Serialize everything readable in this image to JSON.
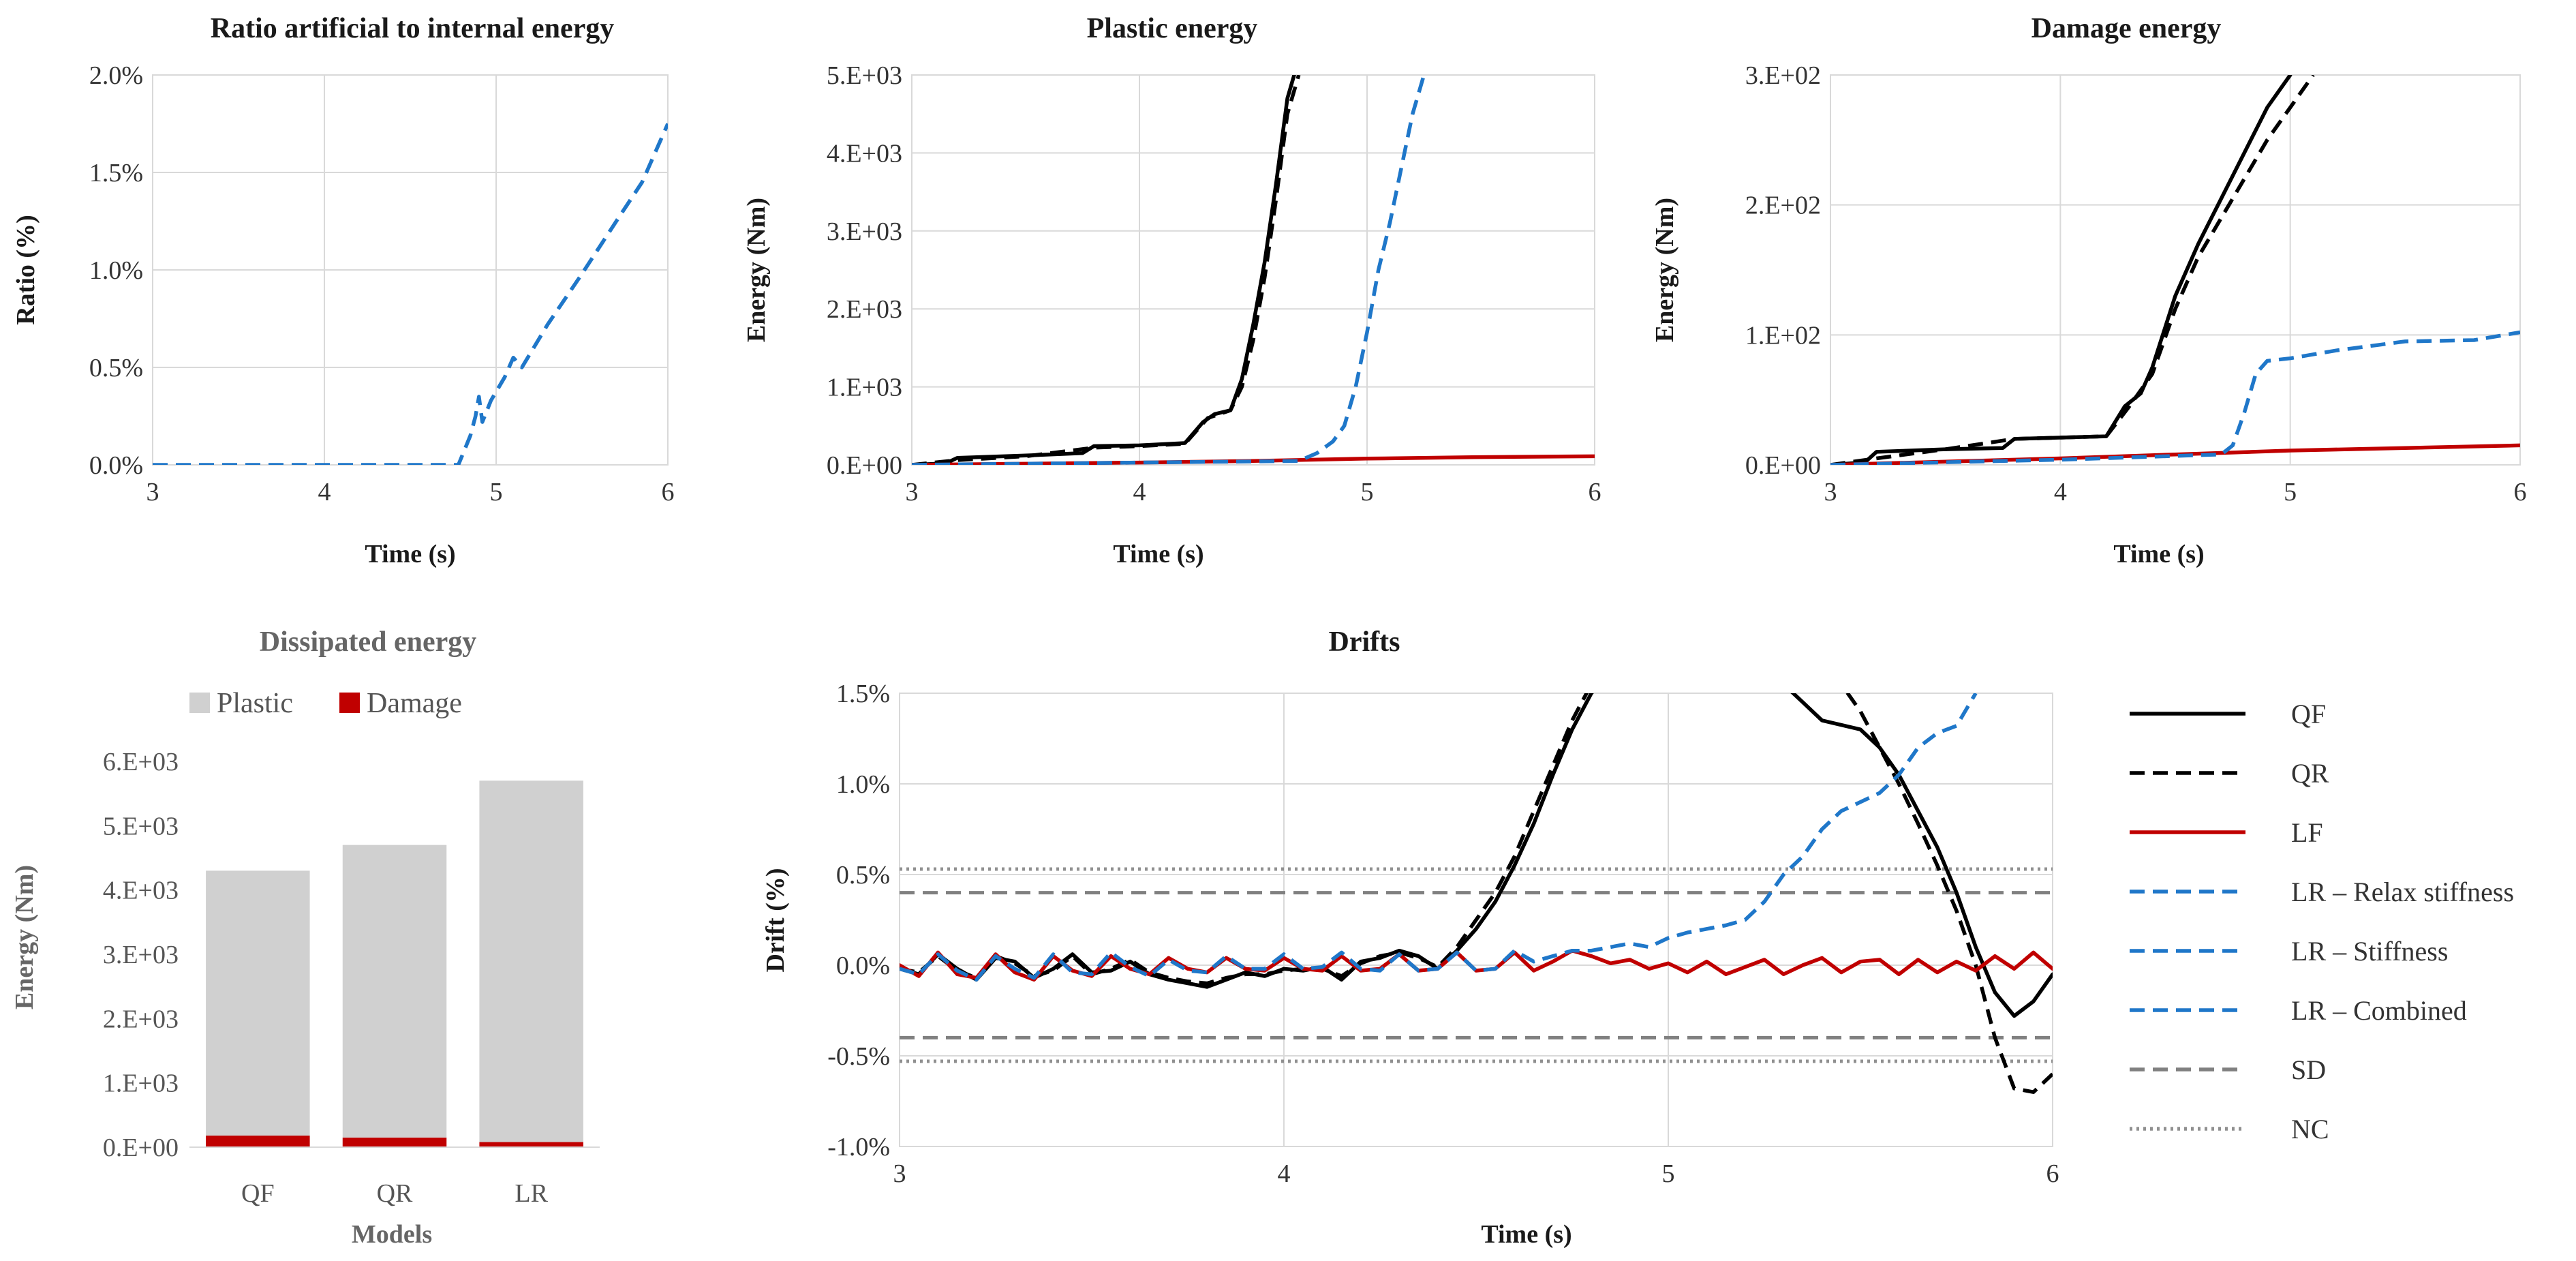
{
  "chart_data": [
    {
      "id": "ratio",
      "type": "line",
      "title": "Ratio artificial to internal energy",
      "xlabel": "Time (s)",
      "ylabel": "Ratio (%)",
      "xlim": [
        3,
        6
      ],
      "ylim": [
        0,
        2
      ],
      "x_ticks": [
        3,
        4,
        5,
        6
      ],
      "x_tick_labels": [
        "3",
        "4",
        "5",
        "6"
      ],
      "y_ticks": [
        0,
        0.5,
        1,
        1.5,
        2
      ],
      "y_tick_labels": [
        "0.0%",
        "0.5%",
        "1.0%",
        "1.5%",
        "2.0%"
      ],
      "grid": true,
      "series": [
        {
          "name": "LR",
          "color": "#1f77c9",
          "dash": "dashed",
          "x": [
            3,
            4.0,
            4.78,
            4.85,
            4.88,
            4.9,
            4.92,
            4.97,
            5.05,
            5.1,
            5.15,
            5.3,
            5.5,
            5.7,
            5.85,
            6.0
          ],
          "y": [
            0,
            0,
            0,
            0.15,
            0.25,
            0.35,
            0.22,
            0.33,
            0.45,
            0.55,
            0.5,
            0.72,
            0.98,
            1.25,
            1.45,
            1.75
          ]
        }
      ]
    },
    {
      "id": "plastic",
      "type": "line",
      "title": "Plastic energy",
      "xlabel": "Time (s)",
      "ylabel": "Energy (Nm)",
      "xlim": [
        3,
        6
      ],
      "ylim": [
        0,
        5000
      ],
      "x_ticks": [
        3,
        4,
        5,
        6
      ],
      "x_tick_labels": [
        "3",
        "4",
        "5",
        "6"
      ],
      "y_ticks": [
        0,
        1000,
        2000,
        3000,
        4000,
        5000
      ],
      "y_tick_labels": [
        "0.E+00",
        "1.E+03",
        "2.E+03",
        "3.E+03",
        "4.E+03",
        "5.E+03"
      ],
      "grid": true,
      "series": [
        {
          "name": "QF",
          "color": "#000000",
          "dash": "solid",
          "x": [
            3,
            3.15,
            3.2,
            3.5,
            3.75,
            3.8,
            4.0,
            4.2,
            4.28,
            4.33,
            4.4,
            4.45,
            4.5,
            4.55,
            4.6,
            4.65,
            4.68
          ],
          "y": [
            0,
            20,
            90,
            120,
            150,
            240,
            250,
            280,
            550,
            650,
            700,
            1100,
            1800,
            2600,
            3600,
            4700,
            5000
          ]
        },
        {
          "name": "QR",
          "color": "#000000",
          "dash": "dashed",
          "x": [
            3,
            3.2,
            3.5,
            3.8,
            4.0,
            4.2,
            4.3,
            4.4,
            4.45,
            4.5,
            4.55,
            4.6,
            4.65,
            4.7
          ],
          "y": [
            0,
            60,
            110,
            220,
            240,
            270,
            600,
            700,
            1000,
            1600,
            2400,
            3400,
            4500,
            5000
          ]
        },
        {
          "name": "LF",
          "color": "#c00000",
          "dash": "solid",
          "x": [
            3,
            4.0,
            4.5,
            5.0,
            5.5,
            6.0
          ],
          "y": [
            0,
            30,
            50,
            80,
            100,
            110
          ]
        },
        {
          "name": "LR",
          "color": "#1f77c9",
          "dash": "dashed",
          "x": [
            3,
            4.0,
            4.7,
            4.78,
            4.85,
            4.9,
            4.95,
            5.0,
            5.05,
            5.1,
            5.15,
            5.2,
            5.25
          ],
          "y": [
            0,
            30,
            50,
            150,
            300,
            500,
            1000,
            1700,
            2500,
            3100,
            3800,
            4500,
            5000
          ]
        }
      ]
    },
    {
      "id": "damage",
      "type": "line",
      "title": "Damage energy",
      "xlabel": "Time (s)",
      "ylabel": "Energy (Nm)",
      "xlim": [
        3,
        6
      ],
      "ylim": [
        0,
        300
      ],
      "x_ticks": [
        3,
        4,
        5,
        6
      ],
      "x_tick_labels": [
        "3",
        "4",
        "5",
        "6"
      ],
      "y_ticks": [
        0,
        100,
        200,
        300
      ],
      "y_tick_labels": [
        "0.E+00",
        "1.E+02",
        "2.E+02",
        "3.E+02"
      ],
      "grid": true,
      "series": [
        {
          "name": "QF",
          "color": "#000000",
          "dash": "solid",
          "x": [
            3,
            3.15,
            3.2,
            3.5,
            3.75,
            3.8,
            4.0,
            4.2,
            4.28,
            4.35,
            4.4,
            4.5,
            4.6,
            4.7,
            4.8,
            4.9,
            5.0
          ],
          "y": [
            0,
            2,
            10,
            12,
            13,
            20,
            21,
            22,
            45,
            55,
            75,
            130,
            170,
            205,
            240,
            275,
            300
          ]
        },
        {
          "name": "QR",
          "color": "#000000",
          "dash": "dashed",
          "x": [
            3,
            3.2,
            3.5,
            3.8,
            4.0,
            4.2,
            4.3,
            4.4,
            4.5,
            4.6,
            4.7,
            4.8,
            4.9,
            5.0,
            5.1
          ],
          "y": [
            0,
            5,
            12,
            20,
            21,
            22,
            45,
            70,
            120,
            160,
            190,
            220,
            250,
            275,
            300
          ]
        },
        {
          "name": "LF",
          "color": "#c00000",
          "dash": "solid",
          "x": [
            3,
            4.0,
            4.5,
            5.0,
            5.5,
            6.0
          ],
          "y": [
            0,
            5,
            8,
            11,
            13,
            15
          ]
        },
        {
          "name": "LR",
          "color": "#1f77c9",
          "dash": "dashed",
          "x": [
            3,
            4.0,
            4.7,
            4.75,
            4.8,
            4.85,
            4.9,
            5.0,
            5.2,
            5.5,
            5.8,
            6.0
          ],
          "y": [
            0,
            4,
            8,
            15,
            40,
            70,
            80,
            82,
            88,
            95,
            96,
            102
          ]
        }
      ]
    },
    {
      "id": "dissipated",
      "type": "bar",
      "stacked": true,
      "title": "Dissipated energy",
      "xlabel": "Models",
      "ylabel": "Energy (Nm)",
      "categories": [
        "QF",
        "QR",
        "LR"
      ],
      "ylim": [
        0,
        6000
      ],
      "y_ticks": [
        0,
        1000,
        2000,
        3000,
        4000,
        5000,
        6000
      ],
      "y_tick_labels": [
        "0.E+00",
        "1.E+03",
        "2.E+03",
        "3.E+03",
        "4.E+03",
        "5.E+03",
        "6.E+03"
      ],
      "legend_position": "top",
      "series": [
        {
          "name": "Damage",
          "color": "#c00000",
          "values": [
            180,
            150,
            80
          ]
        },
        {
          "name": "Plastic",
          "color": "#d0d0d0",
          "values": [
            4120,
            4550,
            5620
          ]
        }
      ]
    },
    {
      "id": "drifts",
      "type": "line",
      "title": "Drifts",
      "xlabel": "Time (s)",
      "ylabel": "Drift (%)",
      "xlim": [
        3,
        6
      ],
      "ylim": [
        -1,
        1.5
      ],
      "x_ticks": [
        3,
        4,
        5,
        6
      ],
      "x_tick_labels": [
        "3",
        "4",
        "5",
        "6"
      ],
      "y_ticks": [
        -1,
        -0.5,
        0,
        0.5,
        1,
        1.5
      ],
      "y_tick_labels": [
        "-1.0%",
        "-0.5%",
        "0.0%",
        "0.5%",
        "1.0%",
        "1.5%"
      ],
      "grid": true,
      "legend_position": "right",
      "series": [
        {
          "name": "QF",
          "color": "#000000",
          "dash": "solid",
          "x": [
            3,
            3.05,
            3.1,
            3.15,
            3.2,
            3.25,
            3.3,
            3.35,
            3.4,
            3.45,
            3.5,
            3.55,
            3.6,
            3.65,
            3.7,
            3.75,
            3.8,
            3.85,
            3.9,
            3.95,
            4.0,
            4.05,
            4.1,
            4.15,
            4.2,
            4.25,
            4.3,
            4.35,
            4.4,
            4.45,
            4.5,
            4.55,
            4.6,
            4.65,
            4.7,
            4.75,
            4.8,
            4.82,
            5.3,
            5.35,
            5.4,
            5.5,
            5.55,
            5.6,
            5.65,
            5.7,
            5.75,
            5.8,
            5.85,
            5.9,
            5.95,
            6.0
          ],
          "y": [
            -0.02,
            -0.05,
            0.06,
            -0.02,
            -0.08,
            0.04,
            0.02,
            -0.07,
            -0.02,
            0.06,
            -0.04,
            -0.03,
            0.02,
            -0.05,
            -0.08,
            -0.1,
            -0.12,
            -0.08,
            -0.04,
            -0.06,
            -0.02,
            -0.03,
            -0.01,
            -0.08,
            0.02,
            0.04,
            0.08,
            0.05,
            -0.02,
            0.08,
            0.2,
            0.35,
            0.55,
            0.78,
            1.05,
            1.3,
            1.5,
            1.55,
            1.55,
            1.45,
            1.35,
            1.3,
            1.2,
            1.05,
            0.85,
            0.65,
            0.4,
            0.1,
            -0.15,
            -0.28,
            -0.2,
            -0.05
          ]
        },
        {
          "name": "QR",
          "color": "#000000",
          "dash": "dashed",
          "x": [
            3,
            3.05,
            3.1,
            3.15,
            3.2,
            3.25,
            3.3,
            3.35,
            3.4,
            3.45,
            3.5,
            3.55,
            3.6,
            3.65,
            3.7,
            3.75,
            3.8,
            3.85,
            3.9,
            3.95,
            4.0,
            4.05,
            4.1,
            4.15,
            4.2,
            4.25,
            4.3,
            4.35,
            4.4,
            4.45,
            4.5,
            4.55,
            4.6,
            4.65,
            4.7,
            4.75,
            4.8,
            5.45,
            5.5,
            5.55,
            5.6,
            5.65,
            5.7,
            5.75,
            5.8,
            5.85,
            5.9,
            5.95,
            6.0
          ],
          "y": [
            -0.02,
            -0.04,
            0.05,
            -0.03,
            -0.07,
            0.05,
            0.01,
            -0.06,
            -0.03,
            0.05,
            -0.05,
            -0.02,
            0.03,
            -0.04,
            -0.07,
            -0.09,
            -0.1,
            -0.07,
            -0.05,
            -0.05,
            -0.03,
            -0.02,
            -0.02,
            -0.06,
            0.01,
            0.05,
            0.07,
            0.04,
            -0.01,
            0.1,
            0.25,
            0.4,
            0.6,
            0.85,
            1.1,
            1.35,
            1.55,
            1.55,
            1.4,
            1.2,
            1.0,
            0.78,
            0.55,
            0.3,
            0.0,
            -0.4,
            -0.68,
            -0.7,
            -0.6
          ]
        },
        {
          "name": "LF",
          "color": "#c00000",
          "dash": "solid",
          "x": [
            3,
            3.05,
            3.1,
            3.15,
            3.2,
            3.25,
            3.3,
            3.35,
            3.4,
            3.45,
            3.5,
            3.55,
            3.6,
            3.65,
            3.7,
            3.75,
            3.8,
            3.85,
            3.9,
            3.95,
            4.0,
            4.05,
            4.1,
            4.15,
            4.2,
            4.25,
            4.3,
            4.35,
            4.4,
            4.45,
            4.5,
            4.55,
            4.6,
            4.65,
            4.7,
            4.75,
            4.8,
            4.85,
            4.9,
            4.95,
            5.0,
            5.05,
            5.1,
            5.15,
            5.2,
            5.25,
            5.3,
            5.35,
            5.4,
            5.45,
            5.5,
            5.55,
            5.6,
            5.65,
            5.7,
            5.75,
            5.8,
            5.85,
            5.9,
            5.95,
            6.0
          ],
          "y": [
            0.0,
            -0.06,
            0.07,
            -0.05,
            -0.07,
            0.06,
            -0.04,
            -0.08,
            0.05,
            -0.03,
            -0.06,
            0.05,
            -0.02,
            -0.05,
            0.04,
            -0.02,
            -0.04,
            0.04,
            -0.02,
            -0.03,
            0.04,
            -0.02,
            -0.03,
            0.05,
            -0.03,
            -0.02,
            0.06,
            -0.03,
            -0.02,
            0.07,
            -0.03,
            -0.02,
            0.07,
            -0.03,
            0.02,
            0.08,
            0.05,
            0.01,
            0.03,
            -0.02,
            0.01,
            -0.04,
            0.02,
            -0.05,
            -0.01,
            0.03,
            -0.05,
            0.0,
            0.04,
            -0.04,
            0.02,
            0.03,
            -0.05,
            0.03,
            -0.04,
            0.02,
            -0.03,
            0.05,
            -0.02,
            0.07,
            -0.02
          ]
        },
        {
          "name": "LR – Relax stiffness",
          "color": "#1f77c9",
          "dash": "dashed",
          "x": [
            3,
            3.05,
            3.1,
            3.15,
            3.2,
            3.25,
            3.3,
            3.35,
            3.4,
            3.45,
            3.5,
            3.55,
            3.6,
            3.65,
            3.7,
            3.75,
            3.8,
            3.85,
            3.9,
            3.95,
            4.0,
            4.05,
            4.1,
            4.15,
            4.2,
            4.25,
            4.3,
            4.35,
            4.4,
            4.45,
            4.5,
            4.55,
            4.6,
            4.65,
            4.7,
            4.75,
            4.8,
            4.85,
            4.9,
            4.95,
            5.0,
            5.05,
            5.1,
            5.15,
            5.2,
            5.25,
            5.3,
            5.35,
            5.4,
            5.45,
            5.5,
            5.55,
            5.6,
            5.65,
            5.7,
            5.75,
            5.8
          ],
          "y": [
            -0.02,
            -0.05,
            0.06,
            -0.03,
            -0.08,
            0.05,
            -0.02,
            -0.07,
            0.06,
            -0.04,
            -0.05,
            0.07,
            -0.01,
            -0.06,
            0.03,
            -0.03,
            -0.04,
            0.05,
            -0.02,
            -0.02,
            0.06,
            -0.02,
            -0.01,
            0.07,
            -0.02,
            -0.03,
            0.06,
            -0.03,
            -0.02,
            0.07,
            -0.03,
            -0.02,
            0.08,
            0.02,
            0.05,
            0.08,
            0.08,
            0.1,
            0.12,
            0.1,
            0.15,
            0.18,
            0.2,
            0.22,
            0.25,
            0.35,
            0.5,
            0.6,
            0.75,
            0.85,
            0.9,
            0.95,
            1.05,
            1.2,
            1.28,
            1.32,
            1.5
          ]
        }
      ],
      "reference_lines": [
        {
          "name": "SD",
          "color": "#808080",
          "dash": "dashed",
          "values": [
            0.4,
            -0.4
          ]
        },
        {
          "name": "NC",
          "color": "#909090",
          "dash": "dotted",
          "values": [
            0.53,
            -0.53
          ]
        }
      ],
      "legend": [
        {
          "name": "QF",
          "color": "#000000",
          "dash": "solid"
        },
        {
          "name": "QR",
          "color": "#000000",
          "dash": "dashed"
        },
        {
          "name": "LF",
          "color": "#c00000",
          "dash": "solid"
        },
        {
          "name": "LR – Relax stiffness",
          "color": "#1f77c9",
          "dash": "dashed"
        },
        {
          "name": "LR – Stiffness",
          "color": "#1f77c9",
          "dash": "dashed"
        },
        {
          "name": "LR – Combined",
          "color": "#1f77c9",
          "dash": "dashed"
        },
        {
          "name": "SD",
          "color": "#808080",
          "dash": "dashed"
        },
        {
          "name": "NC",
          "color": "#909090",
          "dash": "dotted"
        }
      ]
    }
  ]
}
